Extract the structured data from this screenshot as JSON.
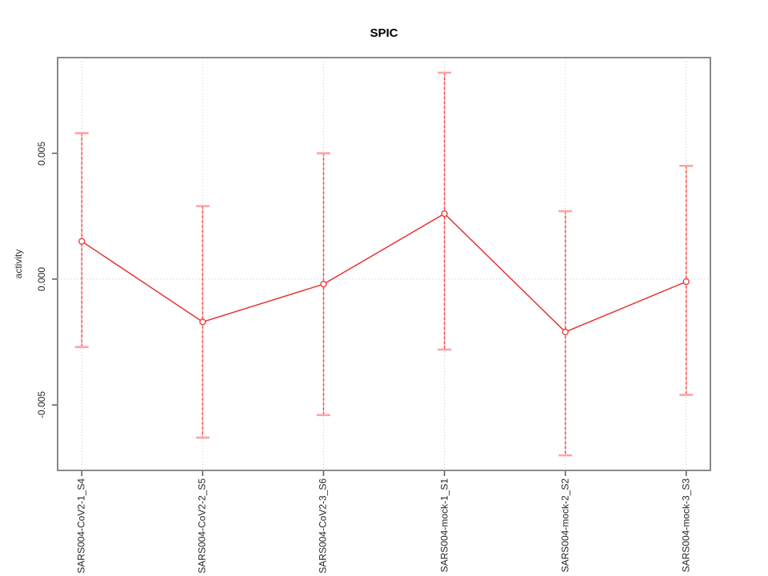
{
  "chart_data": {
    "type": "line",
    "title": "SPIC",
    "xlabel": "",
    "ylabel": "activity",
    "categories": [
      "SARS004-CoV2-1_S4",
      "SARS004-CoV2-2_S5",
      "SARS004-CoV2-3_S6",
      "SARS004-mock-1_S1",
      "SARS004-mock-2_S2",
      "SARS004-mock-3_S3"
    ],
    "series": [
      {
        "name": "activity",
        "values": [
          0.0015,
          -0.0017,
          -0.0002,
          0.0026,
          -0.0021,
          -0.0001
        ],
        "error_high": [
          0.0058,
          0.0029,
          0.005,
          0.0082,
          0.0027,
          0.0045
        ],
        "error_low": [
          -0.0027,
          -0.0063,
          -0.0054,
          -0.0028,
          -0.007,
          -0.0046
        ]
      }
    ],
    "ylim": [
      -0.0076,
      0.0088
    ],
    "yticks": [
      0.005,
      0.0,
      -0.005
    ],
    "ytick_labels": [
      "0.005",
      "0.000",
      "-0.005"
    ],
    "marker": "open-circle",
    "grid": {
      "vertical_at_categories": true,
      "horizontal_at_zero": true
    },
    "legend_position": "none",
    "colors": {
      "series": "#e83535",
      "error_bar_light": "#ffa3a3",
      "error_bar_dash": "#ef4040",
      "grid": "#c9c9c9",
      "axis_box": "#8a8a8a",
      "tick": "#555555",
      "background": "#ffffff"
    }
  }
}
